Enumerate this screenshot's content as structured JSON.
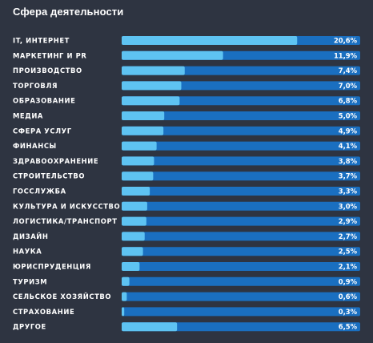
{
  "title": "Сфера деятельности",
  "colors": {
    "background": "#2e3441",
    "track": "#1a6fc0",
    "bar": "#5ec3f2",
    "text": "#ffffff"
  },
  "chart_data": {
    "type": "bar",
    "orientation": "horizontal",
    "title": "Сфера деятельности",
    "xlim": [
      0,
      28
    ],
    "grid": false,
    "legend": "none",
    "categories": [
      "IT, ИНТЕРНЕТ",
      "МАРКЕТИНГ И PR",
      "ПРОИЗВОДСТВО",
      "ТОРГОВЛЯ",
      "ОБРАЗОВАНИЕ",
      "МЕДИА",
      "СФЕРА УСЛУГ",
      "ФИНАНСЫ",
      "ЗДРАВООХРАНЕНИЕ",
      "СТРОИТЕЛЬСТВО",
      "ГОССЛУЖБА",
      "КУЛЬТУРА И ИСКУССТВО",
      "ЛОГИСТИКА/ТРАНСПОРТ",
      "ДИЗАЙН",
      "НАУКА",
      "ЮРИСПРУДЕНЦИЯ",
      "ТУРИЗМ",
      "СЕЛЬСКОЕ ХОЗЯЙСТВО",
      "СТРАХОВАНИЕ",
      "ДРУГОЕ"
    ],
    "values": [
      20.6,
      11.9,
      7.4,
      7.0,
      6.8,
      5.0,
      4.9,
      4.1,
      3.8,
      3.7,
      3.3,
      3.0,
      2.9,
      2.7,
      2.5,
      2.1,
      0.9,
      0.6,
      0.3,
      6.5
    ],
    "value_labels": [
      "20,6%",
      "11,9%",
      "7,4%",
      "7,0%",
      "6,8%",
      "5,0%",
      "4,9%",
      "4,1%",
      "3,8%",
      "3,7%",
      "3,3%",
      "3,0%",
      "2,9%",
      "2,7%",
      "2,5%",
      "2,1%",
      "0,9%",
      "0,6%",
      "0,3%",
      "6,5%"
    ]
  }
}
